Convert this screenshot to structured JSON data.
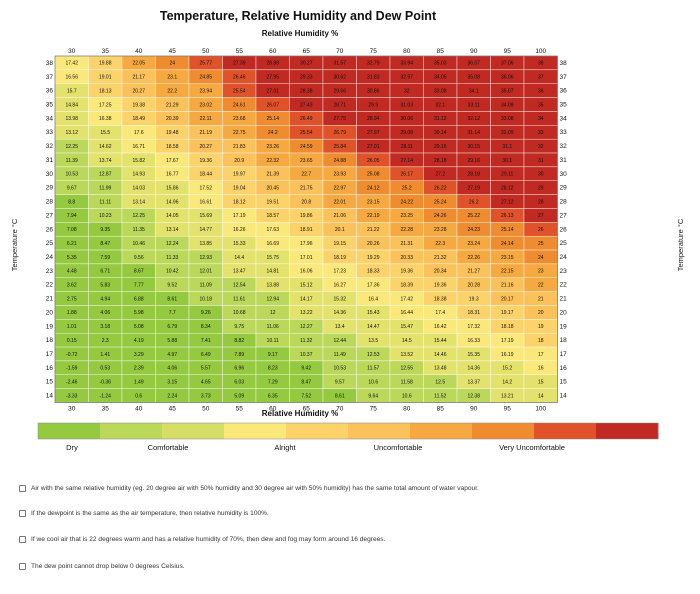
{
  "chart_data": {
    "type": "heatmap",
    "title": "Temperature, Relative Humidity and Dew Point",
    "x_title_top": "Relative Humidity %",
    "x_title_bottom": "Relative Humidity %",
    "y_title": "Temperature °C",
    "y_title_right": "Temperature °C",
    "x": [
      30,
      35,
      40,
      45,
      50,
      55,
      60,
      65,
      70,
      75,
      80,
      85,
      90,
      95,
      100
    ],
    "x_top_labels": [
      "30",
      "35",
      "40",
      "45",
      "50",
      "55",
      "60",
      "65",
      "70",
      "75",
      "80",
      "85",
      "90",
      "95",
      "100"
    ],
    "x_bottom_labels": [
      "30",
      "35",
      "40",
      "45",
      "50",
      "55",
      "60",
      "65",
      "70",
      "75",
      "80",
      "85",
      "90",
      "95",
      "100"
    ],
    "y": [
      38,
      37,
      36,
      35,
      34,
      33,
      32,
      31,
      30,
      29,
      28,
      27,
      26,
      25,
      24,
      23,
      22,
      21,
      20,
      19,
      18,
      17,
      16,
      15,
      14
    ],
    "y_labels": [
      "38",
      "37",
      "36",
      "35",
      "34",
      "33",
      "32",
      "31",
      "30",
      "29",
      "28",
      "27",
      "26",
      "25",
      "24",
      "23",
      "22",
      "21",
      "20",
      "19",
      "18",
      "17",
      "16",
      "15",
      "14"
    ],
    "values": [
      [
        "17.42",
        "19.88",
        "22.05",
        "24",
        "25.77",
        "27.39",
        "28.88",
        "30.27",
        "31.57",
        "32.79",
        "33.94",
        "35.03",
        "36.07",
        "37.06",
        "38"
      ],
      [
        "16.56",
        "19.01",
        "21.17",
        "23.1",
        "24.85",
        "26.46",
        "27.95",
        "29.33",
        "30.62",
        "31.83",
        "32.97",
        "34.05",
        "35.08",
        "36.06",
        "37"
      ],
      [
        "15.7",
        "18.13",
        "20.27",
        "22.2",
        "23.94",
        "25.54",
        "27.01",
        "28.38",
        "29.66",
        "30.86",
        "32",
        "33.08",
        "34.1",
        "35.07",
        "36"
      ],
      [
        "14.84",
        "17.25",
        "19.38",
        "21.29",
        "23.02",
        "24.61",
        "26.07",
        "27.43",
        "28.71",
        "29.9",
        "31.03",
        "32.1",
        "33.11",
        "34.08",
        "35"
      ],
      [
        "13.98",
        "16.38",
        "18.49",
        "20.39",
        "22.11",
        "23.68",
        "25.14",
        "26.49",
        "27.75",
        "28.94",
        "30.06",
        "31.12",
        "32.12",
        "33.08",
        "34"
      ],
      [
        "13.12",
        "15.5",
        "17.6",
        "19.48",
        "21.19",
        "22.75",
        "24.2",
        "25.54",
        "26.79",
        "27.97",
        "29.08",
        "30.14",
        "31.14",
        "32.09",
        "33"
      ],
      [
        "12.25",
        "14.62",
        "16.71",
        "18.58",
        "20.27",
        "21.83",
        "23.26",
        "24.59",
        "25.84",
        "27.01",
        "28.11",
        "29.16",
        "30.15",
        "31.1",
        "32"
      ],
      [
        "11.39",
        "13.74",
        "15.82",
        "17.67",
        "19.36",
        "20.9",
        "22.32",
        "23.65",
        "24.88",
        "26.05",
        "27.14",
        "28.18",
        "29.16",
        "30.1",
        "31"
      ],
      [
        "10.53",
        "12.87",
        "14.93",
        "16.77",
        "18.44",
        "19.97",
        "21.39",
        "22.7",
        "23.93",
        "25.08",
        "26.17",
        "27.2",
        "28.18",
        "29.11",
        "30"
      ],
      [
        "9.67",
        "11.99",
        "14.03",
        "15.86",
        "17.52",
        "19.04",
        "20.45",
        "21.75",
        "22.97",
        "24.12",
        "25.2",
        "26.22",
        "27.19",
        "28.12",
        "29"
      ],
      [
        "8.8",
        "11.11",
        "13.14",
        "14.96",
        "16.61",
        "18.12",
        "19.51",
        "20.8",
        "22.01",
        "23.15",
        "24.22",
        "25.24",
        "26.2",
        "27.12",
        "28"
      ],
      [
        "7.94",
        "10.23",
        "12.25",
        "14.05",
        "15.69",
        "17.19",
        "18.57",
        "19.86",
        "21.06",
        "22.19",
        "23.25",
        "24.26",
        "25.22",
        "26.13",
        "27"
      ],
      [
        "7.08",
        "9.35",
        "11.35",
        "13.14",
        "14.77",
        "16.26",
        "17.63",
        "18.91",
        "20.1",
        "21.22",
        "22.28",
        "23.28",
        "24.23",
        "25.14",
        "26"
      ],
      [
        "6.21",
        "8.47",
        "10.46",
        "12.24",
        "13.85",
        "15.33",
        "16.69",
        "17.96",
        "19.15",
        "20.26",
        "21.31",
        "22.3",
        "23.24",
        "24.14",
        "25"
      ],
      [
        "5.35",
        "7.59",
        "9.56",
        "11.33",
        "12.93",
        "14.4",
        "15.75",
        "17.01",
        "18.19",
        "19.29",
        "20.33",
        "21.32",
        "22.26",
        "23.15",
        "24"
      ],
      [
        "4.48",
        "6.71",
        "8.67",
        "10.42",
        "12.01",
        "13.47",
        "14.81",
        "16.06",
        "17.23",
        "18.33",
        "19.36",
        "20.34",
        "21.27",
        "22.15",
        "23"
      ],
      [
        "3.62",
        "5.83",
        "7.77",
        "9.52",
        "11.09",
        "12.54",
        "13.88",
        "15.12",
        "16.27",
        "17.36",
        "18.39",
        "19.36",
        "20.28",
        "21.16",
        "22"
      ],
      [
        "2.75",
        "4.94",
        "6.88",
        "8.61",
        "10.18",
        "11.61",
        "12.94",
        "14.17",
        "15.32",
        "16.4",
        "17.42",
        "18.38",
        "19.3",
        "20.17",
        "21"
      ],
      [
        "1.88",
        "4.06",
        "5.98",
        "7.7",
        "9.26",
        "10.68",
        "12",
        "13.22",
        "14.36",
        "15.43",
        "16.44",
        "17.4",
        "18.31",
        "19.17",
        "20"
      ],
      [
        "1.01",
        "3.18",
        "5.08",
        "6.79",
        "8.34",
        "9.75",
        "11.06",
        "12.27",
        "13.4",
        "14.47",
        "15.47",
        "16.42",
        "17.32",
        "18.18",
        "19"
      ],
      [
        "0.15",
        "2.3",
        "4.19",
        "5.88",
        "7.41",
        "8.82",
        "10.11",
        "11.32",
        "12.44",
        "13.5",
        "14.5",
        "15.44",
        "16.33",
        "17.19",
        "18"
      ],
      [
        "-0.72",
        "1.41",
        "3.29",
        "4.97",
        "6.49",
        "7.89",
        "9.17",
        "10.37",
        "11.49",
        "12.53",
        "13.52",
        "14.46",
        "15.35",
        "16.19",
        "17"
      ],
      [
        "-1.59",
        "0.53",
        "2.39",
        "4.06",
        "5.57",
        "6.96",
        "8.23",
        "9.42",
        "10.53",
        "11.57",
        "12.55",
        "13.48",
        "14.36",
        "15.2",
        "16"
      ],
      [
        "-2.46",
        "-0.36",
        "1.49",
        "3.15",
        "4.65",
        "6.03",
        "7.29",
        "8.47",
        "9.57",
        "10.6",
        "11.58",
        "12.5",
        "13.37",
        "14.2",
        "15"
      ],
      [
        "-3.33",
        "-1.24",
        "0.6",
        "2.24",
        "3.73",
        "5.09",
        "6.35",
        "7.52",
        "8.61",
        "9.64",
        "10.6",
        "11.52",
        "12.38",
        "13.21",
        "14"
      ]
    ],
    "color_scale": {
      "bins": [
        {
          "min": -100,
          "color": "#94c940"
        },
        {
          "min": 9.5,
          "color": "#bbd85a"
        },
        {
          "min": 13,
          "color": "#e3e26c"
        },
        {
          "min": 16,
          "color": "#fbe87b"
        },
        {
          "min": 18,
          "color": "#fcd36a"
        },
        {
          "min": 20,
          "color": "#fbc15a"
        },
        {
          "min": 22,
          "color": "#f7a941"
        },
        {
          "min": 24,
          "color": "#f08c30"
        },
        {
          "min": 25.5,
          "color": "#e0522a"
        },
        {
          "min": 27,
          "color": "#c02a22"
        }
      ]
    },
    "legend": [
      {
        "label": "Dry",
        "color": "#94c940"
      },
      {
        "label": "Comfortable",
        "color": "#bbd85a"
      },
      {
        "label": "Alright",
        "color": "#fbe87b"
      },
      {
        "label": "Uncomfortable",
        "color": "#f7a941"
      },
      {
        "label": "Very Uncomfortable",
        "color": "#e0522a"
      }
    ],
    "legend_colors": [
      "#94c940",
      "#bbd85a",
      "#d5de66",
      "#fbe87b",
      "#fcd36a",
      "#fbc15a",
      "#f7a941",
      "#f08c30",
      "#e0522a",
      "#c02a22"
    ]
  },
  "options": [
    "Air with the same relative humidity (eg. 20 degree air with 50% humidity and 30 degree air with 50% humidity) has the same total amount of water vapour.",
    "If the dewpoint is the same as the air temperature, then relative humidity is 100%.",
    "If we cool air that is 22 degrees warm and has a relative humidity of 70%, then dew and fog may form around 16 degrees.",
    "The dew point cannot drop below 0 degrees Celsius."
  ]
}
